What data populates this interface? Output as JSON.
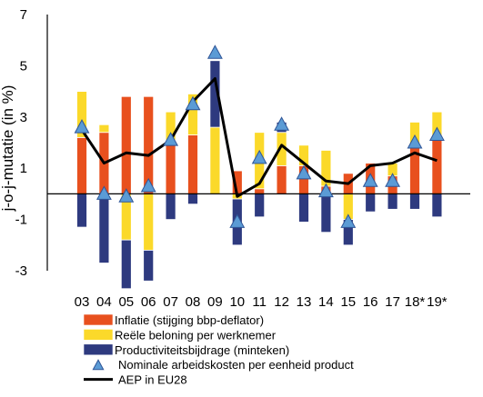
{
  "chart_data": {
    "type": "bar",
    "ylabel": "j-o-j-mutatie (in %)",
    "ylim": [
      -3,
      7
    ],
    "yticks": [
      "-3",
      "-1",
      "1",
      "3",
      "5",
      "7"
    ],
    "ytick_values": [
      -3,
      -1,
      1,
      3,
      5,
      7
    ],
    "categories": [
      "03",
      "04",
      "05",
      "06",
      "07",
      "08",
      "09",
      "10",
      "11",
      "12",
      "13",
      "14",
      "15",
      "16",
      "17",
      "18*",
      "19*"
    ],
    "series": [
      {
        "name": "Inflatie (stijging bbp-deflator)",
        "kind": "stacked-bar",
        "color": "#e8501e",
        "values": [
          2.2,
          2.4,
          3.8,
          3.8,
          2.1,
          2.3,
          0.0,
          0.9,
          0.2,
          1.1,
          1.1,
          0.3,
          0.8,
          1.2,
          0.7,
          1.8,
          2.1
        ]
      },
      {
        "name": "Reële beloning per werknemer",
        "kind": "stacked-bar",
        "color": "#fbd92a",
        "values": [
          1.8,
          0.3,
          -1.8,
          -2.2,
          1.1,
          1.6,
          2.6,
          -0.2,
          2.2,
          1.3,
          0.8,
          1.4,
          -1.0,
          0.0,
          0.5,
          1.0,
          1.1
        ]
      },
      {
        "name": "Productiviteitsbijdrage (minteken)",
        "kind": "stacked-bar",
        "color": "#2e3a7f",
        "values": [
          -1.3,
          -2.7,
          -1.9,
          -1.2,
          -1.0,
          -0.4,
          2.6,
          -1.8,
          -0.9,
          0.4,
          -1.1,
          -1.5,
          -1.0,
          -0.7,
          -0.6,
          -0.6,
          -0.9
        ]
      },
      {
        "name": "Nominale arbeidskosten per eenheid product",
        "kind": "marker",
        "color": "#5b9bd5",
        "values": [
          2.6,
          0.0,
          -0.1,
          0.3,
          2.1,
          3.5,
          5.5,
          -1.1,
          1.4,
          2.7,
          0.8,
          0.1,
          -1.1,
          0.5,
          0.5,
          2.0,
          2.3
        ]
      },
      {
        "name": "AEP in EU28",
        "kind": "line",
        "color": "#000000",
        "values": [
          2.5,
          1.2,
          1.6,
          1.5,
          2.1,
          3.6,
          4.5,
          -0.1,
          0.4,
          1.9,
          1.2,
          0.5,
          0.4,
          1.1,
          1.2,
          1.6,
          1.3
        ]
      }
    ],
    "legend_position": "bottom",
    "grid": false
  }
}
